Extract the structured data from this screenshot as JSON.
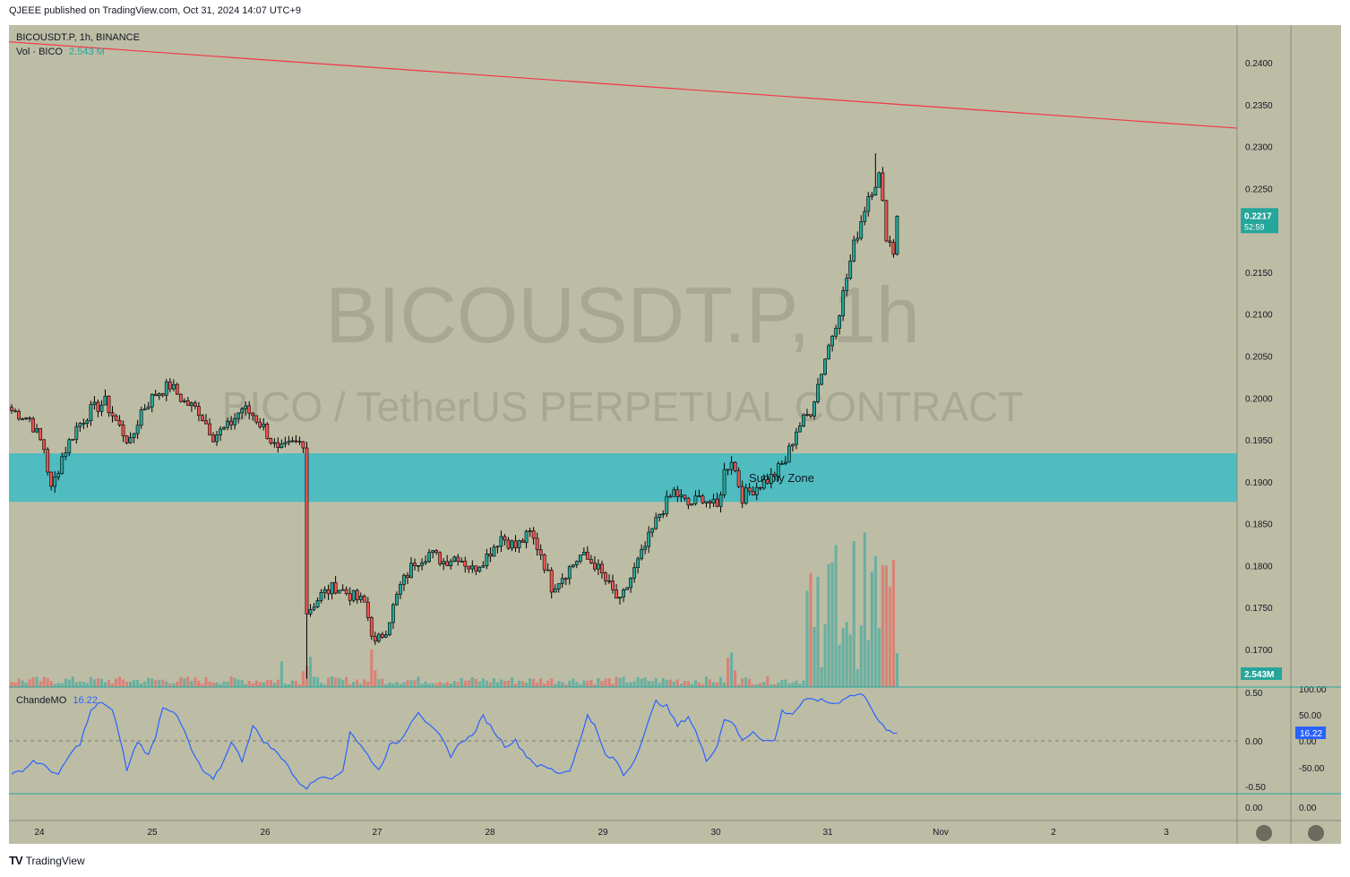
{
  "header": {
    "published": "QJEEE published on TradingView.com, Oct 31, 2024 14:07 UTC+9"
  },
  "legend": {
    "symbol_line": "BICOUSDT.P, 1h, BINANCE",
    "vol_label": "Vol · BICO",
    "vol_value": "2.543 M",
    "indicator_label": "ChandeMO",
    "indicator_value": "16.22"
  },
  "watermark": {
    "title": "BICOUSDT.P, 1h",
    "subtitle": "BICO / TetherUS PERPETUAL CONTRACT"
  },
  "zone_label": "Supply Zone",
  "footer": {
    "brand": "TradingView"
  },
  "colors": {
    "background": "#bdbda6",
    "up": "#26a69a",
    "down": "#ef5350",
    "zone": "#4fbcc0",
    "trendline": "#f23645",
    "cmo": "#2962ff"
  },
  "price_badge": {
    "price": "0.2217",
    "countdown": "52:59"
  },
  "volume_badge": "2.543M",
  "cmo_badge": "16.22",
  "chart_data": [
    {
      "type": "candlestick",
      "title": "BICOUSDT.P, 1h, BINANCE",
      "x_labels": [
        "24",
        "25",
        "26",
        "27",
        "28",
        "29",
        "30",
        "31",
        "Nov",
        "2",
        "3"
      ],
      "y_ticks": [
        "0.2400",
        "0.2350",
        "0.2300",
        "0.2250",
        "0.2150",
        "0.2100",
        "0.2050",
        "0.2000",
        "0.1950",
        "0.1900",
        "0.1850",
        "0.1800",
        "0.1750",
        "0.1700"
      ],
      "ylim": [
        0.1655,
        0.2445
      ],
      "last_price": 0.2217,
      "supply_zone": [
        0.1876,
        0.1934
      ],
      "trendline": {
        "start_price": 0.2425,
        "end_price": 0.2322
      },
      "candle_close_waypoints": [
        [
          0,
          0.1985
        ],
        [
          5,
          0.1975
        ],
        [
          9,
          0.194
        ],
        [
          11,
          0.189
        ],
        [
          14,
          0.193
        ],
        [
          18,
          0.1965
        ],
        [
          22,
          0.1985
        ],
        [
          26,
          0.1995
        ],
        [
          30,
          0.1965
        ],
        [
          33,
          0.1945
        ],
        [
          36,
          0.1985
        ],
        [
          40,
          0.2005
        ],
        [
          44,
          0.2015
        ],
        [
          48,
          0.1995
        ],
        [
          52,
          0.1985
        ],
        [
          56,
          0.1955
        ],
        [
          60,
          0.1965
        ],
        [
          64,
          0.1988
        ],
        [
          67,
          0.198
        ],
        [
          70,
          0.1965
        ],
        [
          74,
          0.1935
        ],
        [
          78,
          0.1945
        ],
        [
          81,
          0.1948
        ],
        [
          82,
          0.1745
        ],
        [
          86,
          0.1765
        ],
        [
          90,
          0.1775
        ],
        [
          94,
          0.1765
        ],
        [
          98,
          0.1755
        ],
        [
          101,
          0.1705
        ],
        [
          104,
          0.1725
        ],
        [
          108,
          0.1775
        ],
        [
          112,
          0.1805
        ],
        [
          116,
          0.1815
        ],
        [
          120,
          0.1805
        ],
        [
          124,
          0.1812
        ],
        [
          128,
          0.1795
        ],
        [
          132,
          0.1812
        ],
        [
          136,
          0.1835
        ],
        [
          140,
          0.1822
        ],
        [
          144,
          0.1838
        ],
        [
          147,
          0.1815
        ],
        [
          150,
          0.1775
        ],
        [
          154,
          0.1792
        ],
        [
          158,
          0.1812
        ],
        [
          162,
          0.1802
        ],
        [
          166,
          0.1775
        ],
        [
          169,
          0.1755
        ],
        [
          172,
          0.1785
        ],
        [
          176,
          0.1822
        ],
        [
          180,
          0.1862
        ],
        [
          184,
          0.1888
        ],
        [
          188,
          0.1872
        ],
        [
          192,
          0.1882
        ],
        [
          196,
          0.1868
        ],
        [
          198,
          0.1912
        ],
        [
          200,
          0.1928
        ],
        [
          203,
          0.1882
        ],
        [
          207,
          0.1895
        ],
        [
          211,
          0.1905
        ],
        [
          215,
          0.1925
        ],
        [
          218,
          0.1962
        ],
        [
          222,
          0.1985
        ],
        [
          226,
          0.2048
        ],
        [
          230,
          0.2105
        ],
        [
          234,
          0.2182
        ],
        [
          238,
          0.2242
        ],
        [
          241,
          0.2265
        ],
        [
          243,
          0.2195
        ],
        [
          245,
          0.2175
        ],
        [
          246,
          0.2217
        ]
      ],
      "volume_peak_candles": [
        75,
        81,
        82,
        83,
        100,
        101,
        199,
        200,
        201,
        221,
        222,
        223,
        224,
        225,
        226,
        227,
        228,
        229,
        230,
        231,
        232,
        233,
        234,
        235,
        236,
        237,
        238,
        239,
        240,
        241,
        242,
        243,
        244,
        245,
        246
      ]
    },
    {
      "type": "line",
      "name": "ChandeMO",
      "y_ticks_left": [
        "0.50",
        "0.00",
        "-0.50"
      ],
      "y_ticks_right": [
        "100.00",
        "50.00",
        "0.00",
        "-50.00"
      ],
      "last_value": 16.22,
      "cmo_waypoints": [
        [
          0,
          -70
        ],
        [
          4,
          -55
        ],
        [
          6,
          -40
        ],
        [
          10,
          -55
        ],
        [
          13,
          -70
        ],
        [
          16,
          -30
        ],
        [
          19,
          -5
        ],
        [
          22,
          60
        ],
        [
          25,
          80
        ],
        [
          28,
          60
        ],
        [
          30,
          10
        ],
        [
          32,
          -60
        ],
        [
          35,
          0
        ],
        [
          38,
          -30
        ],
        [
          40,
          10
        ],
        [
          42,
          70
        ],
        [
          45,
          60
        ],
        [
          48,
          20
        ],
        [
          50,
          -20
        ],
        [
          53,
          -60
        ],
        [
          56,
          -80
        ],
        [
          59,
          -40
        ],
        [
          61,
          0
        ],
        [
          64,
          -40
        ],
        [
          67,
          30
        ],
        [
          70,
          0
        ],
        [
          73,
          -20
        ],
        [
          76,
          -40
        ],
        [
          79,
          -80
        ],
        [
          82,
          -95
        ],
        [
          86,
          -70
        ],
        [
          90,
          -75
        ],
        [
          92,
          -60
        ],
        [
          94,
          20
        ],
        [
          96,
          0
        ],
        [
          99,
          -30
        ],
        [
          102,
          -60
        ],
        [
          105,
          -10
        ],
        [
          108,
          0
        ],
        [
          111,
          40
        ],
        [
          113,
          60
        ],
        [
          116,
          30
        ],
        [
          119,
          10
        ],
        [
          122,
          -30
        ],
        [
          125,
          0
        ],
        [
          128,
          10
        ],
        [
          131,
          50
        ],
        [
          134,
          20
        ],
        [
          137,
          -10
        ],
        [
          140,
          0
        ],
        [
          143,
          -30
        ],
        [
          146,
          -50
        ],
        [
          149,
          -55
        ],
        [
          152,
          -65
        ],
        [
          155,
          -60
        ],
        [
          158,
          0
        ],
        [
          160,
          55
        ],
        [
          162,
          30
        ],
        [
          165,
          -30
        ],
        [
          168,
          -40
        ],
        [
          170,
          -70
        ],
        [
          173,
          -40
        ],
        [
          176,
          20
        ],
        [
          179,
          80
        ],
        [
          182,
          70
        ],
        [
          185,
          30
        ],
        [
          188,
          50
        ],
        [
          190,
          20
        ],
        [
          193,
          -40
        ],
        [
          196,
          -10
        ],
        [
          198,
          45
        ],
        [
          200,
          40
        ],
        [
          203,
          0
        ],
        [
          206,
          20
        ],
        [
          209,
          0
        ],
        [
          212,
          0
        ],
        [
          214,
          60
        ],
        [
          217,
          55
        ],
        [
          220,
          80
        ],
        [
          223,
          85
        ],
        [
          226,
          80
        ],
        [
          229,
          75
        ],
        [
          232,
          90
        ],
        [
          236,
          95
        ],
        [
          238,
          80
        ],
        [
          241,
          40
        ],
        [
          243,
          20
        ],
        [
          246,
          16
        ]
      ]
    }
  ]
}
